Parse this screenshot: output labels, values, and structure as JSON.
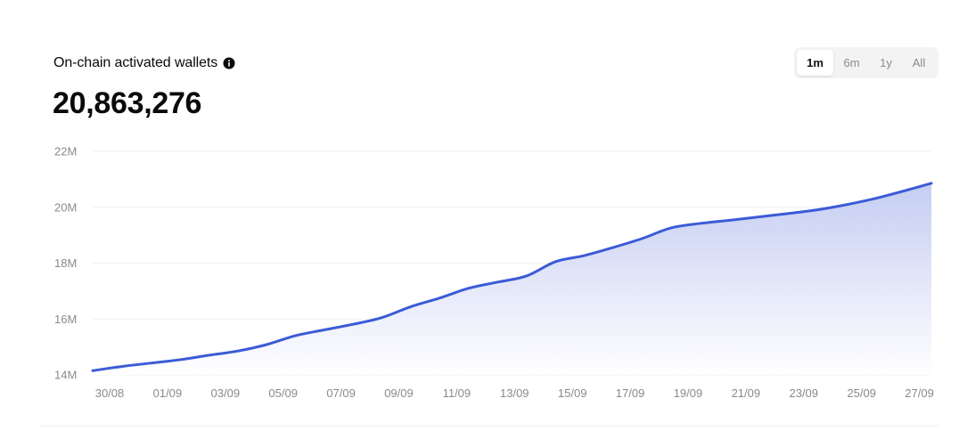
{
  "header": {
    "title": "On-chain activated wallets",
    "value": "20,863,276"
  },
  "range_selector": {
    "options": [
      "1m",
      "6m",
      "1y",
      "All"
    ],
    "selected": "1m"
  },
  "colors": {
    "line": "#3b5bd6",
    "area_top": "#c5cdf2",
    "area_bottom": "#ffffff",
    "grid": "#f0f0f2",
    "axis_text": "#8a8a8f"
  },
  "chart_data": {
    "type": "area",
    "title": "On-chain activated wallets",
    "xlabel": "",
    "ylabel": "",
    "x_tick_labels": [
      "30/08",
      "01/09",
      "03/09",
      "05/09",
      "07/09",
      "09/09",
      "11/09",
      "13/09",
      "15/09",
      "17/09",
      "19/09",
      "21/09",
      "23/09",
      "25/09",
      "27/09"
    ],
    "y_tick_labels": [
      "14M",
      "16M",
      "18M",
      "20M",
      "22M"
    ],
    "ylim": [
      14000000,
      22000000
    ],
    "grid": true,
    "series": [
      {
        "x": [
          "30/08",
          "31/08",
          "01/09",
          "02/09",
          "03/09",
          "04/09",
          "05/09",
          "06/09",
          "07/09",
          "08/09",
          "09/09",
          "10/09",
          "11/09",
          "12/09",
          "13/09",
          "14/09",
          "15/09",
          "16/09",
          "17/09",
          "18/09",
          "19/09",
          "20/09",
          "21/09",
          "22/09",
          "23/09",
          "24/09",
          "25/09",
          "26/09",
          "27/09",
          "28/09"
        ],
        "values": [
          14150000,
          14300000,
          14420000,
          14540000,
          14700000,
          14850000,
          15080000,
          15400000,
          15610000,
          15810000,
          16050000,
          16440000,
          16750000,
          17100000,
          17320000,
          17540000,
          18050000,
          18270000,
          18560000,
          18880000,
          19260000,
          19420000,
          19530000,
          19650000,
          19770000,
          19900000,
          20080000,
          20300000,
          20570000,
          20860000
        ]
      }
    ]
  }
}
